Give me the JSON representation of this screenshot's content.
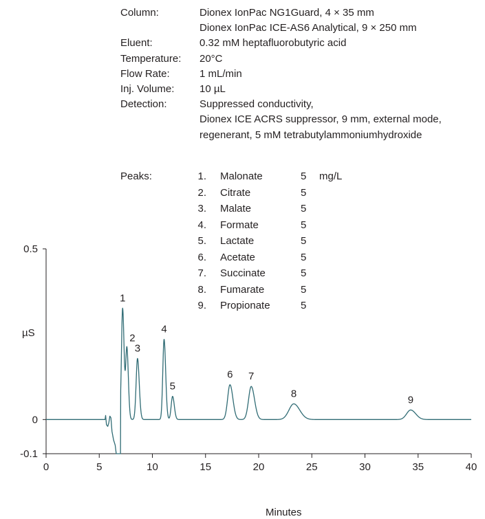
{
  "conditions": [
    {
      "label": "Column:",
      "lines": [
        "Dionex IonPac NG1Guard, 4 × 35 mm",
        "Dionex IonPac ICE-AS6 Analytical, 9 × 250 mm"
      ]
    },
    {
      "label": "Eluent:",
      "lines": [
        "0.32 mM heptafluorobutyric acid"
      ]
    },
    {
      "label": "Temperature:",
      "lines": [
        "20°C"
      ]
    },
    {
      "label": " Flow Rate:",
      "lines": [
        "1 mL/min"
      ]
    },
    {
      "label": "Inj. Volume:",
      "lines": [
        "10 µL"
      ]
    },
    {
      "label": "Detection:",
      "lines": [
        "Suppressed conductivity,",
        "Dionex ICE ACRS suppressor, 9 mm, external mode,",
        "regenerant, 5 mM tetrabutylammoniumhydroxide"
      ]
    }
  ],
  "peaks_label": "Peaks:",
  "peaks_unit": "mg/L",
  "peaks": [
    {
      "num": "1.",
      "name": "Malonate",
      "conc": "5"
    },
    {
      "num": "2.",
      "name": "Citrate",
      "conc": "5"
    },
    {
      "num": "3.",
      "name": "Malate",
      "conc": "5"
    },
    {
      "num": "4.",
      "name": "Formate",
      "conc": "5"
    },
    {
      "num": "5.",
      "name": "Lactate",
      "conc": "5"
    },
    {
      "num": "6.",
      "name": "Acetate",
      "conc": "5"
    },
    {
      "num": "7.",
      "name": "Succinate",
      "conc": "5"
    },
    {
      "num": "8.",
      "name": "Fumarate",
      "conc": "5"
    },
    {
      "num": "9.",
      "name": "Propionate",
      "conc": "5"
    }
  ],
  "chart_data": {
    "type": "line",
    "xlabel": "Minutes",
    "ylabel": "µS",
    "xlim": [
      0,
      40
    ],
    "ylim": [
      -0.1,
      0.5
    ],
    "xticks": [
      0,
      5,
      10,
      15,
      20,
      25,
      30,
      35,
      40
    ],
    "yticks": [
      {
        "value": 0.5,
        "label": "0.5"
      },
      {
        "value": 0,
        "label": "0"
      },
      {
        "value": -0.1,
        "label": "-0.1"
      }
    ],
    "line_color": "#2f6b74",
    "baseline": 0.0,
    "peaks": [
      {
        "label": "1",
        "time": 7.2,
        "height": 0.326,
        "width": 0.11
      },
      {
        "label": "2",
        "time": 7.6,
        "height": 0.209,
        "width": 0.11
      },
      {
        "label": "3",
        "time": 8.6,
        "height": 0.179,
        "width": 0.13
      },
      {
        "label": "4",
        "time": 11.1,
        "height": 0.235,
        "width": 0.12
      },
      {
        "label": "5",
        "time": 11.9,
        "height": 0.068,
        "width": 0.13
      },
      {
        "label": "6",
        "time": 17.3,
        "height": 0.102,
        "width": 0.22
      },
      {
        "label": "7",
        "time": 19.3,
        "height": 0.097,
        "width": 0.25
      },
      {
        "label": "8",
        "time": 23.3,
        "height": 0.046,
        "width": 0.45
      },
      {
        "label": "9",
        "time": 34.3,
        "height": 0.028,
        "width": 0.38
      }
    ],
    "disturbance": [
      {
        "time": 5.55,
        "value": 0.0
      },
      {
        "time": 5.6,
        "value": 0.012
      },
      {
        "time": 5.68,
        "value": -0.015
      },
      {
        "time": 5.8,
        "value": -0.02
      },
      {
        "time": 5.9,
        "value": -0.01
      },
      {
        "time": 6.0,
        "value": 0.01
      },
      {
        "time": 6.1,
        "value": 0.005
      },
      {
        "time": 6.2,
        "value": -0.035
      },
      {
        "time": 6.35,
        "value": -0.06
      },
      {
        "time": 6.5,
        "value": -0.075
      },
      {
        "time": 6.6,
        "value": -0.1
      },
      {
        "time": 6.75,
        "value": -0.1
      },
      {
        "time": 6.9,
        "value": -0.1
      },
      {
        "time": 7.0,
        "value": -0.1
      }
    ]
  }
}
